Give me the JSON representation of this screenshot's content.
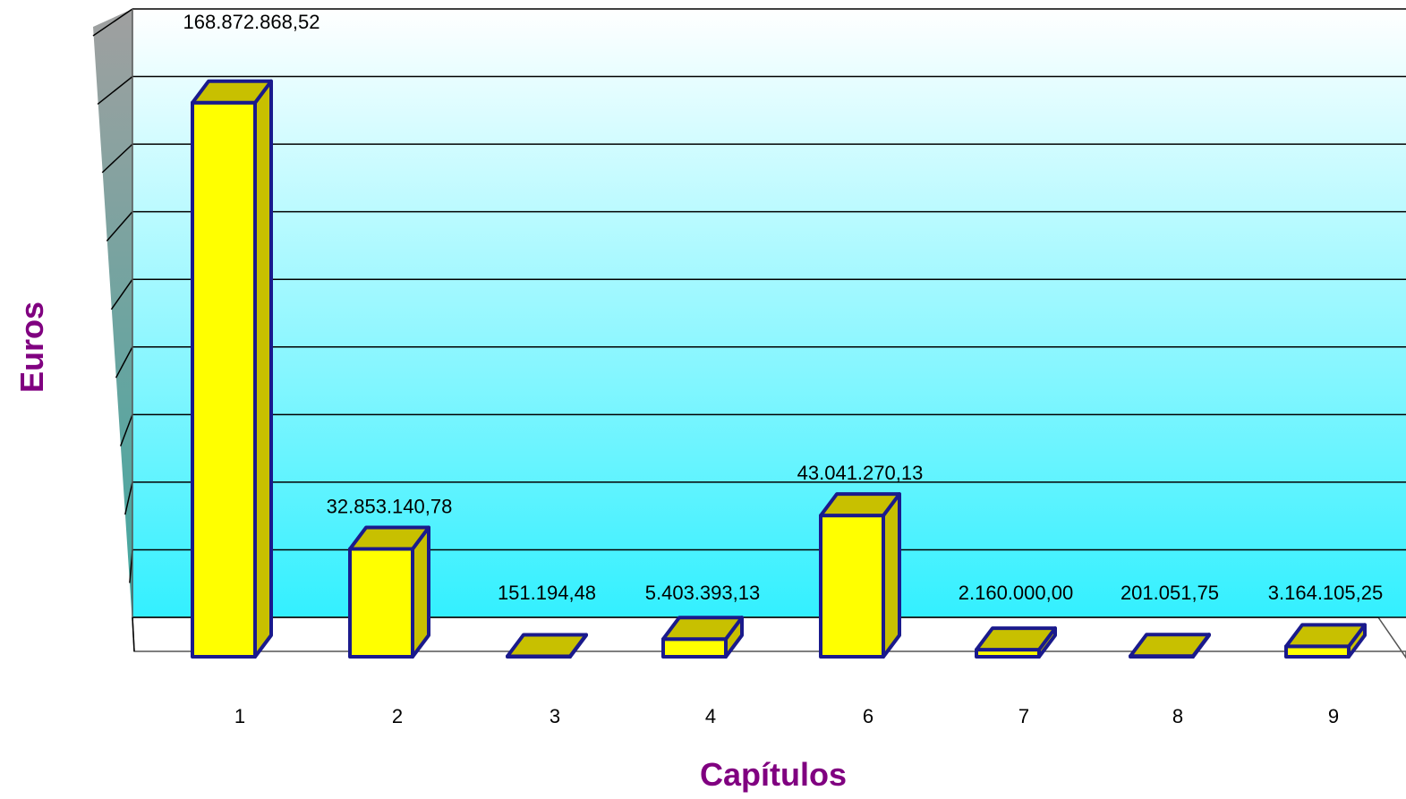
{
  "chart_data": {
    "type": "bar",
    "title": "",
    "xlabel": "Capítulos",
    "ylabel": "Euros",
    "categories": [
      "1",
      "2",
      "3",
      "4",
      "6",
      "7",
      "8",
      "9"
    ],
    "values": [
      168872868.52,
      32853140.78,
      151194.48,
      5403393.13,
      43041270.13,
      2160000.0,
      201051.75,
      3164105.25
    ],
    "value_labels": [
      "168.872.868,52",
      "32.853.140,78",
      "151.194,48",
      "5.403.393,13",
      "43.041.270,13",
      "2.160.000,00",
      "201.051,75",
      "3.164.105,25"
    ],
    "ylim": [
      0,
      180000000
    ],
    "grid": true,
    "legend": "none",
    "colors": {
      "bar_front": "#ffff00",
      "bar_top": "#c8c000",
      "bar_outline": "#1a1a8c",
      "axis_title": "#800080",
      "wall_top": "#ffffff",
      "wall_bottom": "#33f0ff",
      "side_wall_top": "#a0a0a0",
      "side_wall_bottom": "#3aa8a0"
    }
  }
}
